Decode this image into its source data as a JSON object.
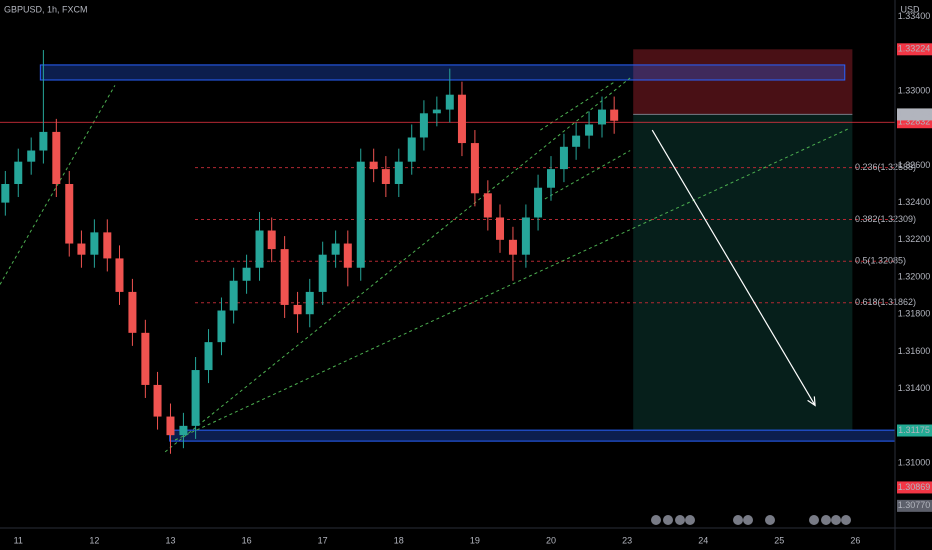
{
  "chart_data": {
    "type": "candlestick",
    "title": "GBPUSD, 1h, FXCM",
    "currency": "USD",
    "x": [
      -0.17,
      0,
      0.17,
      0.33,
      0.5,
      0.67,
      0.83,
      1,
      1.17,
      1.33,
      1.5,
      1.67,
      1.83,
      2,
      2.17,
      2.33,
      2.5,
      2.67,
      2.83,
      3,
      3.17,
      3.33,
      3.5,
      3.67,
      3.83,
      4,
      4.17,
      4.33,
      4.5,
      4.67,
      4.83,
      5,
      5.17,
      5.33,
      5.5,
      5.67,
      5.83,
      6,
      6.17,
      6.33,
      6.5,
      6.67,
      6.83,
      7,
      7.17,
      7.33,
      7.5,
      7.67,
      7.83
    ],
    "open": [
      1.324,
      1.325,
      1.3262,
      1.3268,
      1.3278,
      1.325,
      1.3218,
      1.3212,
      1.3224,
      1.321,
      1.3192,
      1.317,
      1.3142,
      1.3125,
      1.3115,
      1.312,
      1.315,
      1.3165,
      1.3182,
      1.3198,
      1.3205,
      1.3225,
      1.3215,
      1.3185,
      1.318,
      1.3192,
      1.3212,
      1.3218,
      1.3205,
      1.3262,
      1.3258,
      1.325,
      1.3262,
      1.3275,
      1.3288,
      1.329,
      1.3298,
      1.3272,
      1.3245,
      1.3232,
      1.322,
      1.3212,
      1.3232,
      1.3248,
      1.3258,
      1.327,
      1.3276,
      1.3282,
      1.329
    ],
    "high": [
      1.3257,
      1.3269,
      1.3275,
      1.3322,
      1.3285,
      1.3257,
      1.3225,
      1.3231,
      1.3231,
      1.3217,
      1.3199,
      1.3177,
      1.3149,
      1.3132,
      1.3127,
      1.3157,
      1.3172,
      1.3189,
      1.3205,
      1.3212,
      1.3235,
      1.3232,
      1.3222,
      1.3192,
      1.3199,
      1.3219,
      1.3225,
      1.3225,
      1.3269,
      1.3269,
      1.3265,
      1.3269,
      1.3282,
      1.3295,
      1.3297,
      1.3312,
      1.3305,
      1.3279,
      1.3252,
      1.3239,
      1.3227,
      1.3239,
      1.3255,
      1.3265,
      1.3277,
      1.3283,
      1.3289,
      1.3297,
      1.3297
    ],
    "low": [
      1.3233,
      1.3243,
      1.3255,
      1.3261,
      1.3243,
      1.3211,
      1.3205,
      1.3205,
      1.3203,
      1.3185,
      1.3163,
      1.3135,
      1.3118,
      1.3105,
      1.3108,
      1.3113,
      1.3143,
      1.3158,
      1.3175,
      1.3191,
      1.3198,
      1.3208,
      1.3178,
      1.317,
      1.3173,
      1.3185,
      1.3205,
      1.3195,
      1.3198,
      1.3251,
      1.3243,
      1.3243,
      1.3255,
      1.3268,
      1.3281,
      1.3283,
      1.3265,
      1.3238,
      1.3225,
      1.3213,
      1.3198,
      1.3205,
      1.3225,
      1.3241,
      1.3251,
      1.3263,
      1.3269,
      1.3275,
      1.3277
    ],
    "close": [
      1.325,
      1.3262,
      1.3268,
      1.3278,
      1.325,
      1.3218,
      1.3212,
      1.3224,
      1.321,
      1.3192,
      1.317,
      1.3142,
      1.3125,
      1.3115,
      1.312,
      1.315,
      1.3165,
      1.3182,
      1.3198,
      1.3205,
      1.3225,
      1.3215,
      1.3185,
      1.318,
      1.3192,
      1.3212,
      1.3218,
      1.3205,
      1.3262,
      1.3258,
      1.325,
      1.3262,
      1.3275,
      1.3288,
      1.329,
      1.3298,
      1.3272,
      1.3245,
      1.3232,
      1.322,
      1.3212,
      1.3232,
      1.3248,
      1.3258,
      1.327,
      1.3276,
      1.3282,
      1.329,
      1.3284
    ],
    "up_color": "#26a69a",
    "down_color": "#ef5350",
    "xlim": [
      -0.24,
      11.52
    ],
    "xticks": [
      {
        "value": 0,
        "label": "11"
      },
      {
        "value": 1,
        "label": "12"
      },
      {
        "value": 2,
        "label": "13"
      },
      {
        "value": 3,
        "label": "16"
      },
      {
        "value": 4,
        "label": "17"
      },
      {
        "value": 5,
        "label": "18"
      },
      {
        "value": 6,
        "label": "19"
      },
      {
        "value": 7,
        "label": "20"
      },
      {
        "value": 8,
        "label": "23"
      },
      {
        "value": 9,
        "label": "24"
      },
      {
        "value": 10,
        "label": "25"
      },
      {
        "value": 11,
        "label": "26"
      }
    ],
    "ylim": [
      1.30694,
      1.33489
    ],
    "yticks": [
      {
        "value": 1.334,
        "label": "1.33400"
      },
      {
        "value": 1.33,
        "label": "1.33000"
      },
      {
        "value": 1.326,
        "label": "1.32600"
      },
      {
        "value": 1.324,
        "label": "1.32400"
      },
      {
        "value": 1.322,
        "label": "1.32200"
      },
      {
        "value": 1.32,
        "label": "1.32000"
      },
      {
        "value": 1.318,
        "label": "1.31800"
      },
      {
        "value": 1.316,
        "label": "1.31600"
      },
      {
        "value": 1.314,
        "label": "1.31400"
      },
      {
        "value": 1.31,
        "label": "1.31000"
      }
    ],
    "grid": true,
    "position": {
      "stop": 1.33224,
      "entry": 1.32874,
      "target": 1.31175,
      "x": [
        8.08,
        10.96
      ],
      "stop_color": "#f23645",
      "entry_color": "#b2b5be",
      "target_color": "#22ab94"
    },
    "price_labels": [
      {
        "value": 1.32832,
        "color": "#f23645",
        "line": true
      },
      {
        "value": 1.30869,
        "color": "#f23645"
      },
      {
        "value": 1.3077,
        "label": "1.30770",
        "color": "#5d606b"
      }
    ],
    "fib_levels": [
      {
        "value": 1.32588,
        "label": "0.236(1.32588)"
      },
      {
        "value": 1.32309,
        "label": "0.382(1.32309)"
      },
      {
        "value": 1.32085,
        "label": "0.5(1.32085)"
      },
      {
        "value": 1.31862,
        "label": "0.618(1.31862)"
      }
    ],
    "zones": [
      {
        "x": [
          0.29,
          10.86
        ],
        "y": [
          1.3314,
          1.33059
        ]
      },
      {
        "x": [
          1.99,
          11.52
        ],
        "y": [
          1.31177,
          1.31118
        ]
      }
    ],
    "trendlines": [
      {
        "x": [
          -0.24,
          1.27
        ],
        "y": [
          1.3196,
          1.3303
        ]
      },
      {
        "x": [
          1.93,
          8.04
        ],
        "y": [
          1.3106,
          1.3307
        ]
      },
      {
        "x": [
          2.06,
          10.93
        ],
        "y": [
          1.31124,
          1.32801
        ]
      },
      {
        "x": [
          6.86,
          7.84
        ],
        "y": [
          1.3279,
          1.3305
        ]
      },
      {
        "x": [
          6.92,
          8.04
        ],
        "y": [
          1.3242,
          1.3268
        ]
      }
    ],
    "arrow": {
      "x": [
        8.33,
        10.47
      ],
      "y": [
        1.3279,
        1.3131
      ]
    }
  }
}
